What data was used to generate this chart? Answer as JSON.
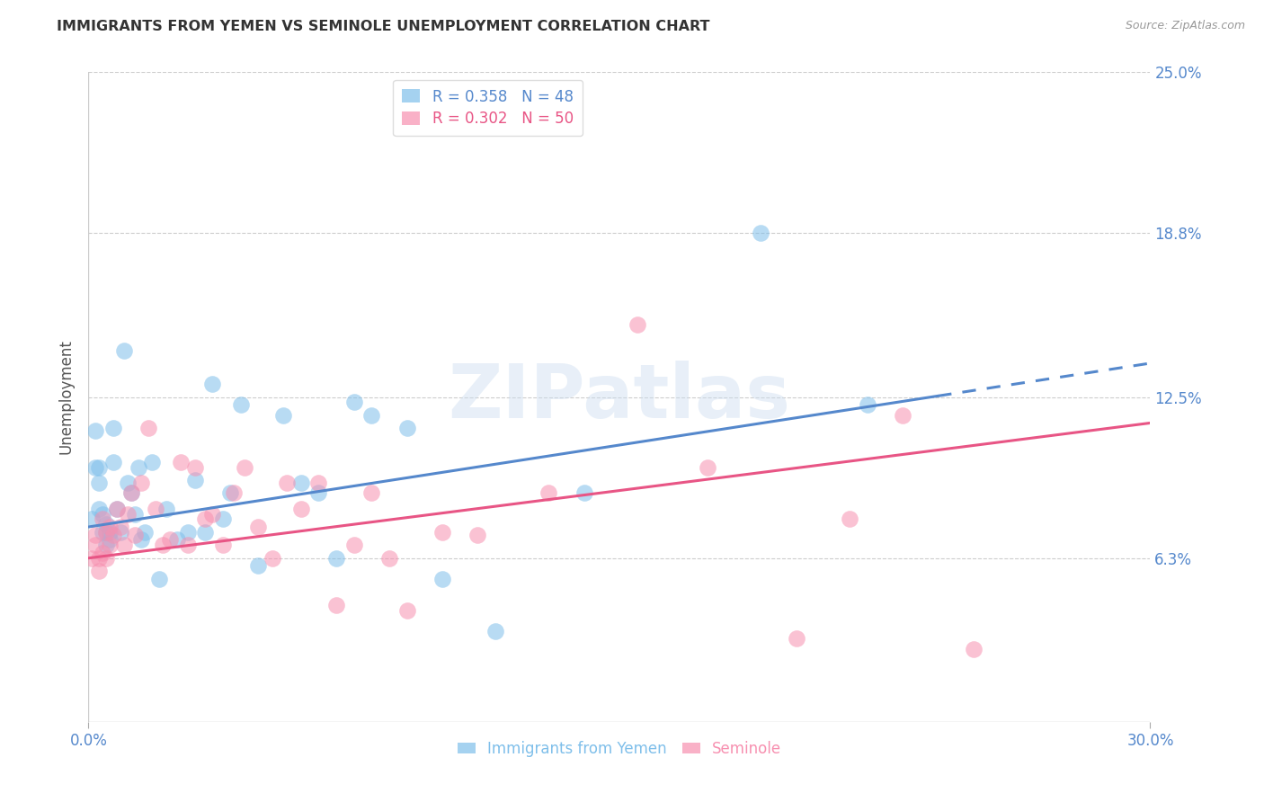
{
  "title": "IMMIGRANTS FROM YEMEN VS SEMINOLE UNEMPLOYMENT CORRELATION CHART",
  "source": "Source: ZipAtlas.com",
  "ylabel": "Unemployment",
  "xlim": [
    0.0,
    0.3
  ],
  "ylim": [
    0.0,
    0.25
  ],
  "ytick_values": [
    0.063,
    0.125,
    0.188,
    0.25
  ],
  "ytick_labels": [
    "6.3%",
    "12.5%",
    "18.8%",
    "25.0%"
  ],
  "watermark": "ZIPatlas",
  "series1_color": "#7fbfea",
  "series2_color": "#f790b0",
  "trendline1_color": "#5588cc",
  "trendline2_color": "#e85585",
  "series1_label": "Immigrants from Yemen",
  "series2_label": "Seminole",
  "legend_R1": "R = 0.358",
  "legend_N1": "N = 48",
  "legend_R2": "R = 0.302",
  "legend_N2": "N = 50",
  "series1_x": [
    0.001,
    0.002,
    0.002,
    0.003,
    0.003,
    0.003,
    0.004,
    0.004,
    0.005,
    0.005,
    0.005,
    0.006,
    0.006,
    0.007,
    0.007,
    0.008,
    0.009,
    0.01,
    0.011,
    0.012,
    0.013,
    0.014,
    0.015,
    0.016,
    0.018,
    0.02,
    0.022,
    0.025,
    0.028,
    0.03,
    0.033,
    0.035,
    0.038,
    0.04,
    0.043,
    0.048,
    0.055,
    0.06,
    0.065,
    0.07,
    0.075,
    0.08,
    0.09,
    0.1,
    0.115,
    0.14,
    0.19,
    0.22
  ],
  "series1_y": [
    0.078,
    0.098,
    0.112,
    0.082,
    0.092,
    0.098,
    0.073,
    0.08,
    0.068,
    0.073,
    0.076,
    0.07,
    0.073,
    0.1,
    0.113,
    0.082,
    0.073,
    0.143,
    0.092,
    0.088,
    0.08,
    0.098,
    0.07,
    0.073,
    0.1,
    0.055,
    0.082,
    0.07,
    0.073,
    0.093,
    0.073,
    0.13,
    0.078,
    0.088,
    0.122,
    0.06,
    0.118,
    0.092,
    0.088,
    0.063,
    0.123,
    0.118,
    0.113,
    0.055,
    0.035,
    0.088,
    0.188,
    0.122
  ],
  "series2_x": [
    0.001,
    0.002,
    0.002,
    0.003,
    0.003,
    0.004,
    0.004,
    0.005,
    0.005,
    0.006,
    0.006,
    0.007,
    0.008,
    0.009,
    0.01,
    0.011,
    0.012,
    0.013,
    0.015,
    0.017,
    0.019,
    0.021,
    0.023,
    0.026,
    0.028,
    0.03,
    0.033,
    0.035,
    0.038,
    0.041,
    0.044,
    0.048,
    0.052,
    0.056,
    0.06,
    0.065,
    0.07,
    0.075,
    0.08,
    0.085,
    0.09,
    0.1,
    0.11,
    0.13,
    0.155,
    0.175,
    0.2,
    0.215,
    0.23,
    0.25
  ],
  "series2_y": [
    0.063,
    0.068,
    0.072,
    0.058,
    0.063,
    0.065,
    0.078,
    0.063,
    0.073,
    0.068,
    0.075,
    0.072,
    0.082,
    0.075,
    0.068,
    0.08,
    0.088,
    0.072,
    0.092,
    0.113,
    0.082,
    0.068,
    0.07,
    0.1,
    0.068,
    0.098,
    0.078,
    0.08,
    0.068,
    0.088,
    0.098,
    0.075,
    0.063,
    0.092,
    0.082,
    0.092,
    0.045,
    0.068,
    0.088,
    0.063,
    0.043,
    0.073,
    0.072,
    0.088,
    0.153,
    0.098,
    0.032,
    0.078,
    0.118,
    0.028
  ],
  "trendline1_x_start": 0.0,
  "trendline1_x_solid_end": 0.24,
  "trendline1_x_end": 0.3,
  "trendline1_y_start": 0.075,
  "trendline1_y_end": 0.138,
  "trendline2_x_start": 0.0,
  "trendline2_x_end": 0.3,
  "trendline2_y_start": 0.063,
  "trendline2_y_end": 0.115
}
